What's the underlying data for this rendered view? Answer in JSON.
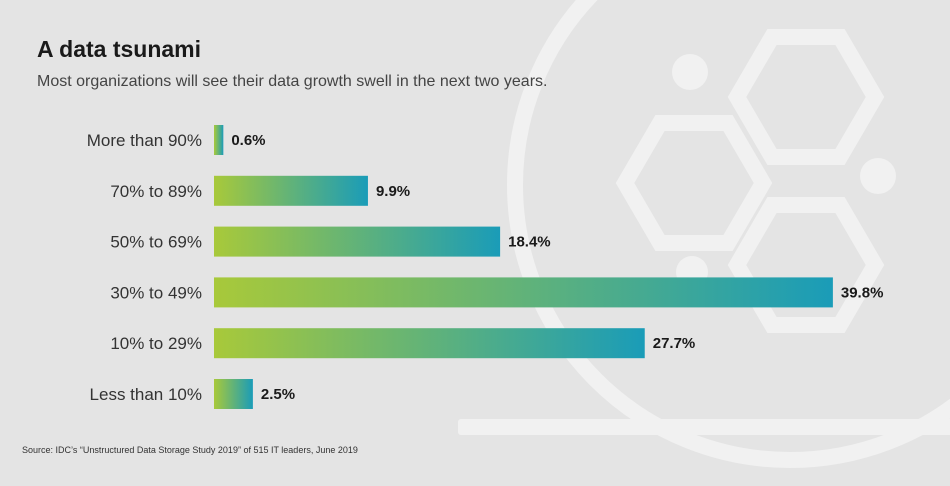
{
  "header": {
    "title": "A data tsunami",
    "subtitle": "Most organizations will see their data growth swell in the next two years."
  },
  "footer": {
    "source": "Source: IDC’s “Unstructured Data Storage Study 2019” of 515 IT leaders, June 2019"
  },
  "colors": {
    "background": "#e4e4e4",
    "bar_start": "#a8c93a",
    "bar_end": "#1a9cb8",
    "decoration": "#f1f1f1"
  },
  "chart_data": {
    "type": "bar",
    "orientation": "horizontal",
    "categories": [
      "More than 90%",
      "70% to 89%",
      "50% to 69%",
      "30% to 49%",
      "10% to 29%",
      "Less than 10%"
    ],
    "values": [
      0.6,
      9.9,
      18.4,
      39.8,
      27.7,
      2.5
    ],
    "value_labels": [
      "0.6%",
      "9.9%",
      "18.4%",
      "39.8%",
      "27.7%",
      "2.5%"
    ],
    "title": "A data tsunami",
    "subtitle": "Most organizations will see their data growth swell in the next two years.",
    "xlim": [
      0,
      40
    ],
    "grid": false,
    "legend": "none"
  }
}
